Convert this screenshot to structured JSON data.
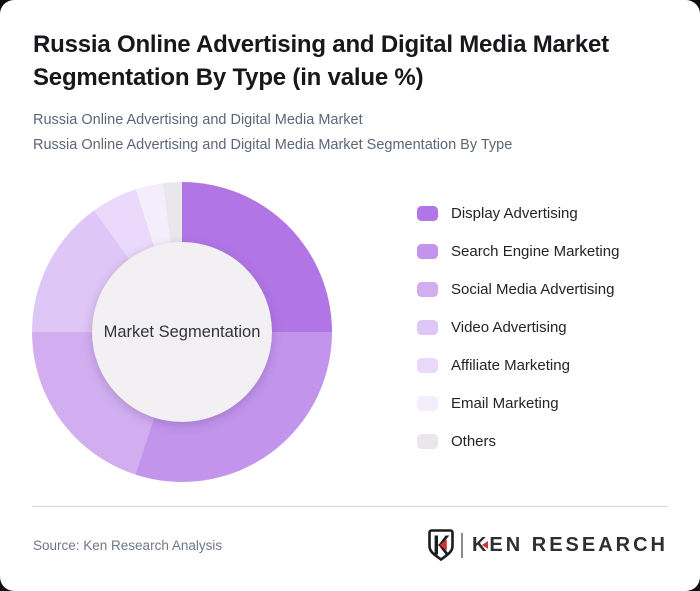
{
  "page": {
    "backdrop_color": "#0E0E0E",
    "card_background": "#FFFFFF"
  },
  "header": {
    "title": "Russia Online Advertising and Digital Media Market Segmentation By Type (in value %)",
    "subtitle_line1": "Russia Online Advertising and Digital Media Market",
    "subtitle_line2": "Russia Online Advertising and Digital Media Market Segmentation By Type"
  },
  "chart_data": {
    "type": "pie",
    "variant": "donut",
    "title": "Russia Online Advertising and Digital Media Market Segmentation By Type (in value %)",
    "unit": "value %",
    "center_label": "Market Segmentation",
    "start_angle_deg": 0,
    "direction": "clockwise",
    "legend_position": "right",
    "categories": [
      "Display Advertising",
      "Search Engine Marketing",
      "Social Media Advertising",
      "Video Advertising",
      "Affiliate Marketing",
      "Email Marketing",
      "Others"
    ],
    "values": [
      25,
      30,
      20,
      15,
      5,
      3,
      2
    ],
    "colors": [
      "#B175E5",
      "#C294EC",
      "#D2AEF1",
      "#DEC6F6",
      "#EAD9FA",
      "#F4EEFC",
      "#E9E7EB"
    ],
    "inner_circle_color": "#F2F0F3"
  },
  "footer": {
    "source": "Source: Ken Research Analysis",
    "logo": {
      "brand_k": "K",
      "brand_rest": "EN RESEARCH",
      "icon": "ken-research-shield-k-icon",
      "accent_color": "#CE3434",
      "text_color": "#2E2E33"
    }
  }
}
